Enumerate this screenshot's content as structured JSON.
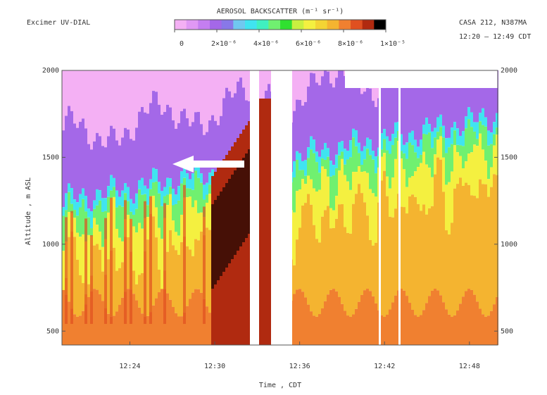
{
  "chart_data": {
    "type": "profile-image",
    "title": "AEROSOL BACKSCATTER (m⁻¹ sr⁻¹)",
    "instrument": "Excimer UV-DIAL",
    "aircraft": "CASA 212, N387MA",
    "time_span": "12:20 – 12:49 CDT",
    "x_label": "Time , CDT",
    "y_label": "Altitude , m ASL",
    "xlim": [
      739.2,
      770
    ],
    "xticks": [
      {
        "value": 744,
        "label": "12:24"
      },
      {
        "value": 750,
        "label": "12:30"
      },
      {
        "value": 756,
        "label": "12:36"
      },
      {
        "value": 762,
        "label": "12:42"
      },
      {
        "value": 768,
        "label": "12:48"
      }
    ],
    "ylim": [
      420,
      2000
    ],
    "yticks": [
      500,
      1000,
      1500,
      2000
    ],
    "colorbar_lim": [
      0,
      1e-05
    ],
    "colorbar_ticks": [
      {
        "value": 0,
        "label": "0"
      },
      {
        "value": 2e-06,
        "label": "2×10⁻⁶"
      },
      {
        "value": 4e-06,
        "label": "4×10⁻⁶"
      },
      {
        "value": 6e-06,
        "label": "6×10⁻⁶"
      },
      {
        "value": 8e-06,
        "label": "8×10⁻⁶"
      },
      {
        "value": 1e-05,
        "label": "1×10⁻⁵"
      }
    ],
    "colorbar_colors": [
      "#f4b0f4",
      "#e098f4",
      "#c47ef0",
      "#a468e8",
      "#8878e8",
      "#70c8f0",
      "#40e4f0",
      "#40f0c0",
      "#70f070",
      "#30e030",
      "#c8f040",
      "#f4f040",
      "#f4d434",
      "#f4b430",
      "#f08030",
      "#e05020",
      "#b02a10",
      "#000000"
    ]
  }
}
